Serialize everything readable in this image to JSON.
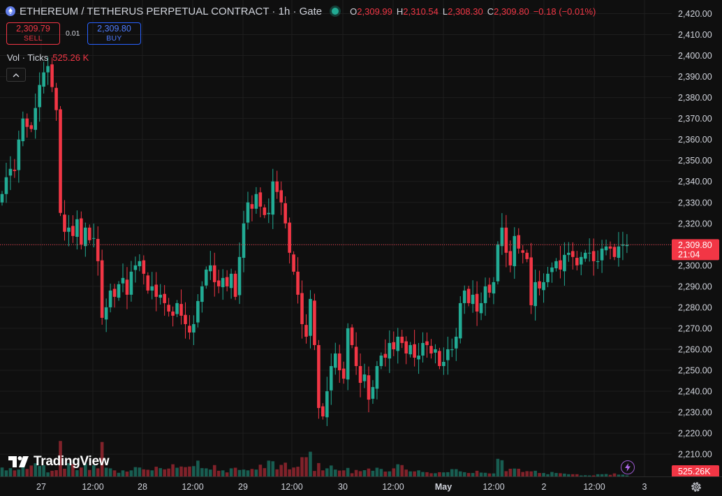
{
  "header": {
    "title": "ETHEREUM / TETHERUS PERPETUAL CONTRACT · 1h · Gate",
    "ohlc": [
      {
        "key": "O",
        "value": "2,309.99"
      },
      {
        "key": "H",
        "value": "2,310.54"
      },
      {
        "key": "L",
        "value": "2,308.30"
      },
      {
        "key": "C",
        "value": "2,309.80"
      },
      {
        "key": "",
        "value": "−0.18 (−0.01%)"
      }
    ]
  },
  "trade": {
    "sell_price": "2,309.79",
    "sell_label": "SELL",
    "spread": "0.01",
    "buy_price": "2,309.80",
    "buy_label": "BUY"
  },
  "volume_indicator": {
    "label": "Vol · Ticks",
    "value": "525.26 K"
  },
  "logo_text": "TradingView",
  "colors": {
    "up": "#22ab94",
    "down": "#f23645",
    "background": "#0f0f0f",
    "grid": "#1e1e1e",
    "buy": "#2962ff"
  },
  "icons": [
    "ethereum-coin-icon",
    "market-open-dot-icon",
    "chevron-up-icon",
    "tradingview-logo-icon",
    "lightning-icon",
    "gear-icon"
  ],
  "chart_data": {
    "type": "candlestick",
    "symbol": "ETHEREUM / TETHERUS PERPETUAL CONTRACT",
    "interval": "1h",
    "exchange": "Gate",
    "y_range": [
      2200,
      2425
    ],
    "y_ticks": [
      "2,420.00",
      "2,410.00",
      "2,400.00",
      "2,390.00",
      "2,380.00",
      "2,370.00",
      "2,360.00",
      "2,350.00",
      "2,340.00",
      "2,330.00",
      "2,320.00",
      "2,310.00",
      "2,300.00",
      "2,290.00",
      "2,280.00",
      "2,270.00",
      "2,260.00",
      "2,250.00",
      "2,240.00",
      "2,230.00",
      "2,220.00",
      "2,210.00"
    ],
    "x_ticks": [
      "27",
      "12:00",
      "28",
      "12:00",
      "29",
      "12:00",
      "30",
      "12:00",
      "May",
      "12:00",
      "2",
      "12:00",
      "3"
    ],
    "last_price": "2,309.80",
    "countdown": "21:04",
    "last_volume": "525.26K",
    "volume_axis_max": 600,
    "bars_close": [
      2334,
      2342,
      2346,
      2345,
      2360,
      2370,
      2366,
      2365,
      2375,
      2386,
      2392,
      2395,
      2385,
      2374,
      2325,
      2316,
      2318,
      2314,
      2322,
      2310,
      2318,
      2312,
      2313,
      2302,
      2275,
      2280,
      2288,
      2285,
      2291,
      2294,
      2286,
      2297,
      2300,
      2302,
      2296,
      2288,
      2290,
      2285,
      2286,
      2282,
      2278,
      2276,
      2282,
      2276,
      2272,
      2268,
      2272,
      2283,
      2290,
      2298,
      2300,
      2292,
      2290,
      2294,
      2290,
      2296,
      2285,
      2304,
      2320,
      2330,
      2327,
      2334,
      2328,
      2324,
      2325,
      2340,
      2335,
      2330,
      2320,
      2306,
      2297,
      2286,
      2272,
      2266,
      2284,
      2262,
      2232,
      2228,
      2240,
      2252,
      2258,
      2250,
      2246,
      2270,
      2262,
      2252,
      2244,
      2248,
      2236,
      2242,
      2252,
      2257,
      2256,
      2263,
      2260,
      2266,
      2263,
      2258,
      2262,
      2256,
      2257,
      2263,
      2262,
      2258,
      2260,
      2252,
      2254,
      2260,
      2260,
      2266,
      2282,
      2288,
      2282,
      2286,
      2278,
      2282,
      2290,
      2287,
      2292,
      2310,
      2318,
      2306,
      2300,
      2314,
      2308,
      2306,
      2303,
      2281,
      2292,
      2289,
      2292,
      2296,
      2299,
      2302,
      2298,
      2305,
      2306,
      2304,
      2300,
      2304,
      2306,
      2306,
      2302,
      2302,
      2308,
      2309,
      2308,
      2304,
      2309,
      2310,
      2309.8
    ],
    "bars_volume": [
      44,
      30,
      41,
      30,
      34,
      47,
      37,
      54,
      65,
      52,
      55,
      20,
      28,
      31,
      175,
      38,
      65,
      60,
      31,
      44,
      65,
      32,
      55,
      40,
      170,
      43,
      40,
      30,
      18,
      30,
      24,
      30,
      46,
      44,
      35,
      33,
      30,
      48,
      41,
      35,
      39,
      60,
      43,
      49,
      46,
      49,
      51,
      78,
      41,
      40,
      34,
      56,
      28,
      30,
      20,
      40,
      43,
      32,
      34,
      30,
      37,
      34,
      58,
      41,
      78,
      75,
      35,
      57,
      68,
      35,
      44,
      48,
      95,
      95,
      122,
      27,
      66,
      30,
      40,
      54,
      34,
      29,
      30,
      42,
      16,
      32,
      26,
      31,
      39,
      28,
      43,
      37,
      24,
      25,
      40,
      60,
      56,
      34,
      25,
      25,
      30,
      22,
      21,
      16,
      16,
      21,
      20,
      21,
      36,
      36,
      25,
      21,
      17,
      17,
      28,
      19,
      18,
      15,
      15,
      87,
      80,
      26,
      38,
      39,
      38,
      22,
      26,
      25,
      28,
      17,
      17,
      11,
      22,
      17,
      16,
      14,
      11,
      11,
      11,
      5,
      6,
      5,
      5,
      11,
      11,
      12,
      8,
      15,
      9,
      9,
      5
    ]
  }
}
